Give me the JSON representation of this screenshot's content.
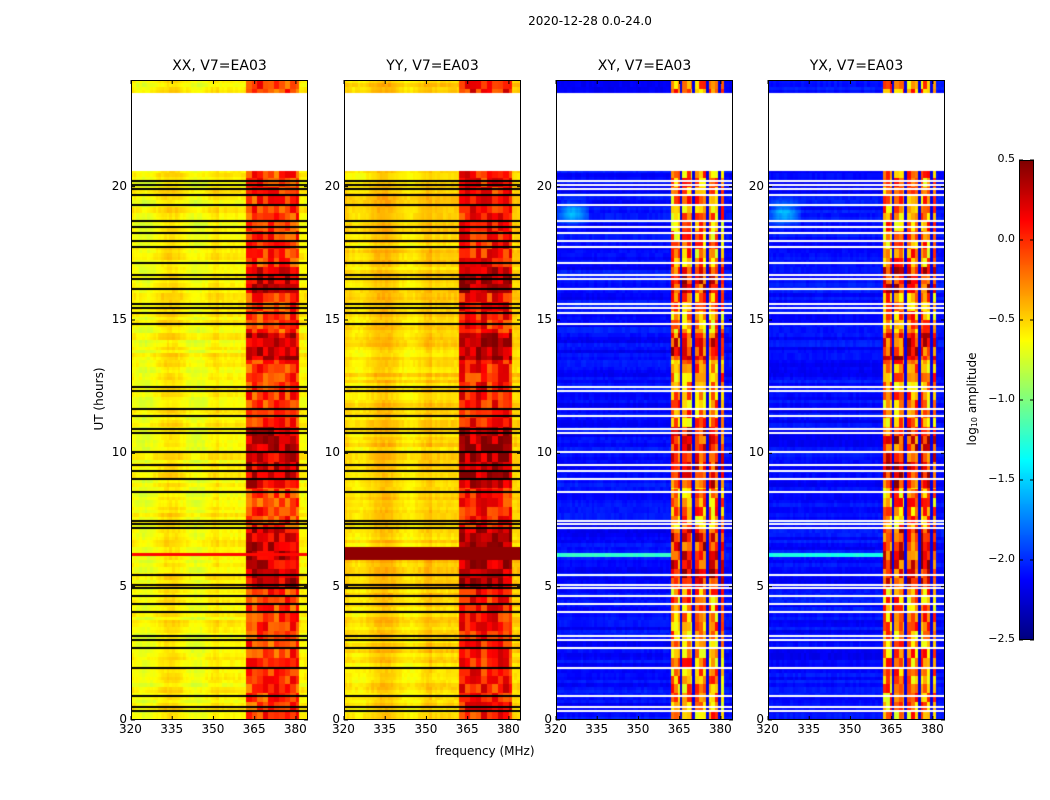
{
  "chart_data": {
    "type": "heatmap",
    "title": "2020-12-28 0.0-24.0",
    "xlabel": "frequency (MHz)",
    "ylabel": "UT (hours)",
    "xlim": [
      320,
      384.4
    ],
    "ylim": [
      0,
      24
    ],
    "xticks": [
      320,
      335,
      350,
      365,
      380
    ],
    "yticks": [
      0,
      5,
      10,
      15,
      20
    ],
    "colormap": "jet",
    "colorbar": {
      "label_prefix": "log",
      "label_sub": "10",
      "label_suffix": " amplitude",
      "range": [
        -2.5,
        0.5
      ],
      "ticks": [
        0.5,
        0.0,
        -0.5,
        -1.0,
        -1.5,
        -2.0,
        -2.5
      ],
      "tick_labels": [
        "0.5",
        "0.0",
        "−0.5",
        "−1.0",
        "−1.5",
        "−2.0",
        "−2.5"
      ]
    },
    "panels": [
      {
        "title": "XX, V7=EA03",
        "kind": "parallel",
        "base": -0.6,
        "band": 0.15
      },
      {
        "title": "YY, V7=EA03",
        "kind": "parallel",
        "base": -0.5,
        "band": 0.25
      },
      {
        "title": "XY, V7=EA03",
        "kind": "cross",
        "base": -2.1,
        "band": -0.3
      },
      {
        "title": "YX, V7=EA03",
        "kind": "cross",
        "base": -2.1,
        "band": -0.3
      }
    ],
    "rfi_band_mhz": [
      362,
      381
    ],
    "no_data_hours": [
      20.6,
      23.5
    ],
    "flagged_hours": [
      0.35,
      0.5,
      0.9,
      1.95,
      2.7,
      3.0,
      3.15,
      4.05,
      4.35,
      4.65,
      4.95,
      5.05,
      5.45,
      7.2,
      7.35,
      7.45,
      8.55,
      9.05,
      9.35,
      9.55,
      10.05,
      10.75,
      10.9,
      11.4,
      11.65,
      12.35,
      12.5,
      14.85,
      15.25,
      15.45,
      15.6,
      16.15,
      16.55,
      16.7,
      17.15,
      17.75,
      17.95,
      18.25,
      18.5,
      18.7,
      19.3,
      19.7,
      19.9,
      20.05,
      20.2
    ]
  }
}
